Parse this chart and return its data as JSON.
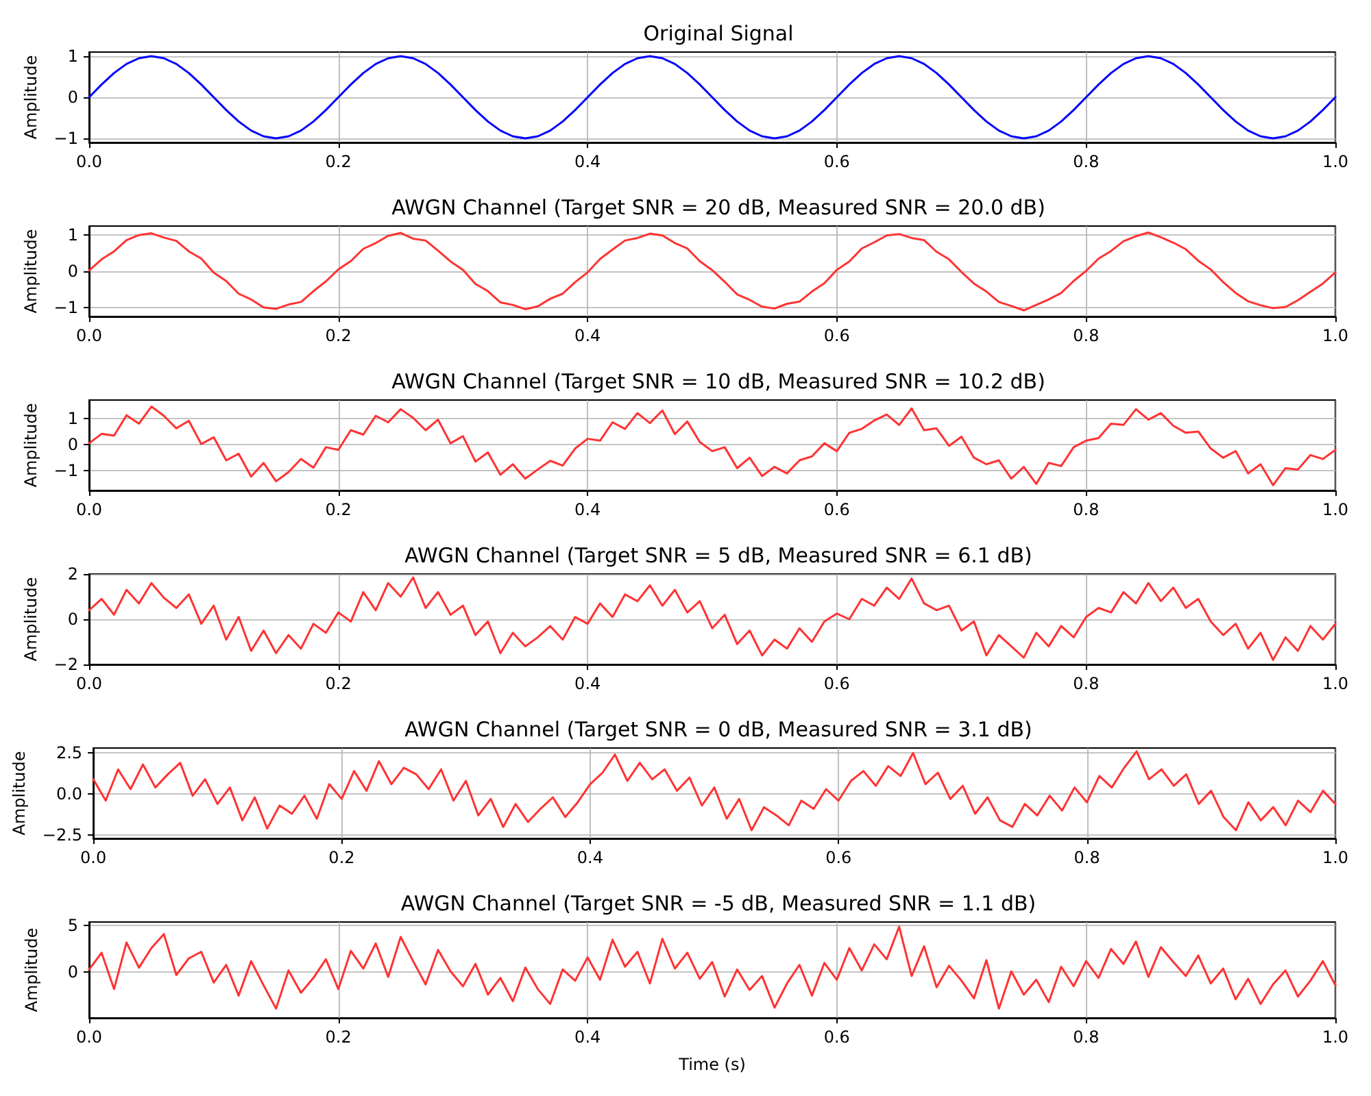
{
  "chart_data": [
    {
      "type": "line",
      "title": "Original Signal",
      "ylabel": "Amplitude",
      "color": "#0000ff",
      "grid": true,
      "marker": "none",
      "line_style": "solid",
      "xlim": [
        0,
        1
      ],
      "ylim": [
        -1.1,
        1.1
      ],
      "xticks": [
        {
          "value": 0,
          "label": "0.0"
        },
        {
          "value": 0.2,
          "label": "0.2"
        },
        {
          "value": 0.4,
          "label": "0.4"
        },
        {
          "value": 0.6,
          "label": "0.6"
        },
        {
          "value": 0.8,
          "label": "0.8"
        },
        {
          "value": 1,
          "label": "1.0"
        }
      ],
      "yticks": [
        {
          "value": -1,
          "label": "−1"
        },
        0,
        1
      ],
      "x": [
        0,
        0.01,
        0.02,
        0.03,
        0.04,
        0.05,
        0.06,
        0.07,
        0.08,
        0.09,
        0.1,
        0.11,
        0.12,
        0.13,
        0.14,
        0.15,
        0.16,
        0.17,
        0.18,
        0.19,
        0.2,
        0.21,
        0.22,
        0.23,
        0.24,
        0.25,
        0.26,
        0.27,
        0.28,
        0.29,
        0.3,
        0.31,
        0.32,
        0.33,
        0.34,
        0.35,
        0.36,
        0.37,
        0.38,
        0.39,
        0.4,
        0.41,
        0.42,
        0.43,
        0.44,
        0.45,
        0.46,
        0.47,
        0.48,
        0.49,
        0.5,
        0.51,
        0.52,
        0.53,
        0.54,
        0.55,
        0.56,
        0.57,
        0.58,
        0.59,
        0.6,
        0.61,
        0.62,
        0.63,
        0.64,
        0.65,
        0.66,
        0.67,
        0.68,
        0.69,
        0.7,
        0.71,
        0.72,
        0.73,
        0.74,
        0.75,
        0.76,
        0.77,
        0.78,
        0.79,
        0.8,
        0.81,
        0.82,
        0.83,
        0.84,
        0.85,
        0.86,
        0.87,
        0.88,
        0.89,
        0.9,
        0.91,
        0.92,
        0.93,
        0.94,
        0.95,
        0.96,
        0.97,
        0.98,
        0.99,
        1
      ],
      "values": [
        0,
        0.31,
        0.59,
        0.81,
        0.95,
        1,
        0.95,
        0.81,
        0.59,
        0.31,
        0,
        -0.31,
        -0.59,
        -0.81,
        -0.95,
        -1,
        -0.95,
        -0.81,
        -0.59,
        -0.31,
        0,
        0.31,
        0.59,
        0.81,
        0.95,
        1,
        0.95,
        0.81,
        0.59,
        0.31,
        0,
        -0.31,
        -0.59,
        -0.81,
        -0.95,
        -1,
        -0.95,
        -0.81,
        -0.59,
        -0.31,
        0,
        0.31,
        0.59,
        0.81,
        0.95,
        1,
        0.95,
        0.81,
        0.59,
        0.31,
        0,
        -0.31,
        -0.59,
        -0.81,
        -0.95,
        -1,
        -0.95,
        -0.81,
        -0.59,
        -0.31,
        0,
        0.31,
        0.59,
        0.81,
        0.95,
        1,
        0.95,
        0.81,
        0.59,
        0.31,
        0,
        -0.31,
        -0.59,
        -0.81,
        -0.95,
        -1,
        -0.95,
        -0.81,
        -0.59,
        -0.31,
        0,
        0.31,
        0.59,
        0.81,
        0.95,
        1,
        0.95,
        0.81,
        0.59,
        0.31,
        0,
        -0.31,
        -0.59,
        -0.81,
        -0.95,
        -1,
        -0.95,
        -0.81,
        -0.59,
        -0.31,
        0
      ]
    },
    {
      "type": "line",
      "title": "AWGN Channel (Target SNR = 20 dB, Measured SNR = 20.0 dB)",
      "ylabel": "Amplitude",
      "color": "#ff3333",
      "grid": true,
      "marker": "none",
      "line_style": "solid",
      "xlim": [
        0,
        1
      ],
      "ylim": [
        -1.25,
        1.25
      ],
      "xticks": [
        {
          "value": 0,
          "label": "0.0"
        },
        {
          "value": 0.2,
          "label": "0.2"
        },
        {
          "value": 0.4,
          "label": "0.4"
        },
        {
          "value": 0.6,
          "label": "0.6"
        },
        {
          "value": 0.8,
          "label": "0.8"
        },
        {
          "value": 1,
          "label": "1.0"
        }
      ],
      "yticks": [
        {
          "value": -1,
          "label": "−1"
        },
        0,
        1
      ],
      "x": [
        0,
        0.01,
        0.02,
        0.03,
        0.04,
        0.05,
        0.06,
        0.07,
        0.08,
        0.09,
        0.1,
        0.11,
        0.12,
        0.13,
        0.14,
        0.15,
        0.16,
        0.17,
        0.18,
        0.19,
        0.2,
        0.21,
        0.22,
        0.23,
        0.24,
        0.25,
        0.26,
        0.27,
        0.28,
        0.29,
        0.3,
        0.31,
        0.32,
        0.33,
        0.34,
        0.35,
        0.36,
        0.37,
        0.38,
        0.39,
        0.4,
        0.41,
        0.42,
        0.43,
        0.44,
        0.45,
        0.46,
        0.47,
        0.48,
        0.49,
        0.5,
        0.51,
        0.52,
        0.53,
        0.54,
        0.55,
        0.56,
        0.57,
        0.58,
        0.59,
        0.6,
        0.61,
        0.62,
        0.63,
        0.64,
        0.65,
        0.66,
        0.67,
        0.68,
        0.69,
        0.7,
        0.71,
        0.72,
        0.73,
        0.74,
        0.75,
        0.76,
        0.77,
        0.78,
        0.79,
        0.8,
        0.81,
        0.82,
        0.83,
        0.84,
        0.85,
        0.86,
        0.87,
        0.88,
        0.89,
        0.9,
        0.91,
        0.92,
        0.93,
        0.94,
        0.95,
        0.96,
        0.97,
        0.98,
        0.99,
        1
      ],
      "values": [
        0.02,
        0.33,
        0.55,
        0.86,
        1.0,
        1.05,
        0.93,
        0.84,
        0.55,
        0.35,
        -0.04,
        -0.27,
        -0.62,
        -0.78,
        -1.0,
        -1.04,
        -0.92,
        -0.85,
        -0.55,
        -0.28,
        0.05,
        0.28,
        0.62,
        0.78,
        0.98,
        1.06,
        0.9,
        0.85,
        0.57,
        0.27,
        0.04,
        -0.35,
        -0.55,
        -0.86,
        -0.93,
        -1.05,
        -0.97,
        -0.76,
        -0.62,
        -0.3,
        -0.03,
        0.34,
        0.6,
        0.85,
        0.92,
        1.04,
        0.99,
        0.78,
        0.63,
        0.28,
        0.03,
        -0.29,
        -0.64,
        -0.79,
        -0.98,
        -1.03,
        -0.9,
        -0.84,
        -0.56,
        -0.33,
        0.04,
        0.27,
        0.63,
        0.8,
        0.99,
        1.03,
        0.92,
        0.86,
        0.54,
        0.33,
        -0.02,
        -0.34,
        -0.56,
        -0.85,
        -0.96,
        -1.08,
        -0.93,
        -0.78,
        -0.6,
        -0.27,
        0.01,
        0.35,
        0.56,
        0.83,
        0.97,
        1.07,
        0.94,
        0.79,
        0.61,
        0.29,
        0.05,
        -0.3,
        -0.6,
        -0.83,
        -0.94,
        -1.02,
        -0.99,
        -0.8,
        -0.57,
        -0.34,
        -0.03
      ]
    },
    {
      "type": "line",
      "title": "AWGN Channel (Target SNR = 10 dB, Measured SNR = 10.2 dB)",
      "ylabel": "Amplitude",
      "color": "#ff3333",
      "grid": true,
      "marker": "none",
      "line_style": "solid",
      "xlim": [
        0,
        1
      ],
      "ylim": [
        -1.75,
        1.7
      ],
      "xticks": [
        {
          "value": 0,
          "label": "0.0"
        },
        {
          "value": 0.2,
          "label": "0.2"
        },
        {
          "value": 0.4,
          "label": "0.4"
        },
        {
          "value": 0.6,
          "label": "0.6"
        },
        {
          "value": 0.8,
          "label": "0.8"
        },
        {
          "value": 1,
          "label": "1.0"
        }
      ],
      "yticks": [
        {
          "value": -1,
          "label": "−1"
        },
        0,
        1
      ],
      "x": [
        0,
        0.01,
        0.02,
        0.03,
        0.04,
        0.05,
        0.06,
        0.07,
        0.08,
        0.09,
        0.1,
        0.11,
        0.12,
        0.13,
        0.14,
        0.15,
        0.16,
        0.17,
        0.18,
        0.19,
        0.2,
        0.21,
        0.22,
        0.23,
        0.24,
        0.25,
        0.26,
        0.27,
        0.28,
        0.29,
        0.3,
        0.31,
        0.32,
        0.33,
        0.34,
        0.35,
        0.36,
        0.37,
        0.38,
        0.39,
        0.4,
        0.41,
        0.42,
        0.43,
        0.44,
        0.45,
        0.46,
        0.47,
        0.48,
        0.49,
        0.5,
        0.51,
        0.52,
        0.53,
        0.54,
        0.55,
        0.56,
        0.57,
        0.58,
        0.59,
        0.6,
        0.61,
        0.62,
        0.63,
        0.64,
        0.65,
        0.66,
        0.67,
        0.68,
        0.69,
        0.7,
        0.71,
        0.72,
        0.73,
        0.74,
        0.75,
        0.76,
        0.77,
        0.78,
        0.79,
        0.8,
        0.81,
        0.82,
        0.83,
        0.84,
        0.85,
        0.86,
        0.87,
        0.88,
        0.89,
        0.9,
        0.91,
        0.92,
        0.93,
        0.94,
        0.95,
        0.96,
        0.97,
        0.98,
        0.99,
        1
      ],
      "values": [
        0.05,
        0.41,
        0.34,
        1.12,
        0.8,
        1.45,
        1.1,
        0.62,
        0.91,
        0.02,
        0.28,
        -0.6,
        -0.35,
        -1.22,
        -0.7,
        -1.4,
        -1.05,
        -0.55,
        -0.88,
        -0.1,
        -0.2,
        0.55,
        0.38,
        1.1,
        0.85,
        1.35,
        1.02,
        0.55,
        0.95,
        0.05,
        0.32,
        -0.65,
        -0.3,
        -1.15,
        -0.75,
        -1.3,
        -0.95,
        -0.62,
        -0.8,
        -0.15,
        0.22,
        0.15,
        0.85,
        0.6,
        1.2,
        0.82,
        1.3,
        0.4,
        0.88,
        0.1,
        -0.25,
        -0.1,
        -0.9,
        -0.5,
        -1.2,
        -0.85,
        -1.1,
        -0.6,
        -0.45,
        0.05,
        -0.25,
        0.45,
        0.6,
        0.92,
        1.15,
        0.75,
        1.38,
        0.55,
        0.62,
        -0.05,
        0.3,
        -0.5,
        -0.75,
        -0.6,
        -1.3,
        -0.85,
        -1.5,
        -0.7,
        -0.82,
        -0.1,
        0.15,
        0.25,
        0.8,
        0.75,
        1.35,
        0.95,
        1.2,
        0.72,
        0.45,
        0.5,
        -0.15,
        -0.5,
        -0.25,
        -1.1,
        -0.75,
        -1.55,
        -0.9,
        -0.95,
        -0.4,
        -0.55,
        -0.2
      ]
    },
    {
      "type": "line",
      "title": "AWGN Channel (Target SNR = 5 dB, Measured SNR = 6.1 dB)",
      "ylabel": "Amplitude",
      "color": "#ff3333",
      "grid": true,
      "marker": "none",
      "line_style": "solid",
      "xlim": [
        0,
        1
      ],
      "ylim": [
        -2,
        2
      ],
      "xticks": [
        {
          "value": 0,
          "label": "0.0"
        },
        {
          "value": 0.2,
          "label": "0.2"
        },
        {
          "value": 0.4,
          "label": "0.4"
        },
        {
          "value": 0.6,
          "label": "0.6"
        },
        {
          "value": 0.8,
          "label": "0.8"
        },
        {
          "value": 1,
          "label": "1.0"
        }
      ],
      "yticks": [
        {
          "value": -2,
          "label": "−2"
        },
        0,
        2
      ],
      "x": [
        0,
        0.01,
        0.02,
        0.03,
        0.04,
        0.05,
        0.06,
        0.07,
        0.08,
        0.09,
        0.1,
        0.11,
        0.12,
        0.13,
        0.14,
        0.15,
        0.16,
        0.17,
        0.18,
        0.19,
        0.2,
        0.21,
        0.22,
        0.23,
        0.24,
        0.25,
        0.26,
        0.27,
        0.28,
        0.29,
        0.3,
        0.31,
        0.32,
        0.33,
        0.34,
        0.35,
        0.36,
        0.37,
        0.38,
        0.39,
        0.4,
        0.41,
        0.42,
        0.43,
        0.44,
        0.45,
        0.46,
        0.47,
        0.48,
        0.49,
        0.5,
        0.51,
        0.52,
        0.53,
        0.54,
        0.55,
        0.56,
        0.57,
        0.58,
        0.59,
        0.6,
        0.61,
        0.62,
        0.63,
        0.64,
        0.65,
        0.66,
        0.67,
        0.68,
        0.69,
        0.7,
        0.71,
        0.72,
        0.73,
        0.74,
        0.75,
        0.76,
        0.77,
        0.78,
        0.79,
        0.8,
        0.81,
        0.82,
        0.83,
        0.84,
        0.85,
        0.86,
        0.87,
        0.88,
        0.89,
        0.9,
        0.91,
        0.92,
        0.93,
        0.94,
        0.95,
        0.96,
        0.97,
        0.98,
        0.99,
        1
      ],
      "values": [
        0.4,
        0.9,
        0.2,
        1.3,
        0.7,
        1.6,
        0.95,
        0.5,
        1.1,
        -0.2,
        0.6,
        -0.9,
        0.1,
        -1.4,
        -0.5,
        -1.5,
        -0.7,
        -1.3,
        -0.2,
        -0.6,
        0.3,
        -0.1,
        1.2,
        0.4,
        1.6,
        1.0,
        1.85,
        0.5,
        1.2,
        0.2,
        0.6,
        -0.7,
        -0.1,
        -1.5,
        -0.6,
        -1.2,
        -0.8,
        -0.3,
        -0.9,
        0.1,
        -0.2,
        0.7,
        0.1,
        1.1,
        0.8,
        1.5,
        0.6,
        1.3,
        0.3,
        0.8,
        -0.4,
        0.2,
        -1.1,
        -0.5,
        -1.6,
        -0.9,
        -1.3,
        -0.4,
        -1.0,
        -0.1,
        0.25,
        0.0,
        0.9,
        0.6,
        1.4,
        0.9,
        1.8,
        0.7,
        0.4,
        0.6,
        -0.5,
        -0.1,
        -1.6,
        -0.7,
        -1.2,
        -1.7,
        -0.6,
        -1.2,
        -0.3,
        -0.8,
        0.1,
        0.5,
        0.3,
        1.2,
        0.7,
        1.6,
        0.8,
        1.4,
        0.5,
        0.9,
        -0.1,
        -0.7,
        -0.2,
        -1.3,
        -0.6,
        -1.8,
        -0.8,
        -1.4,
        -0.3,
        -0.9,
        -0.2
      ]
    },
    {
      "type": "line",
      "title": "AWGN Channel (Target SNR = 0 dB, Measured SNR = 3.1 dB)",
      "ylabel": "Amplitude",
      "color": "#ff3333",
      "grid": true,
      "marker": "none",
      "line_style": "solid",
      "xlim": [
        0,
        1
      ],
      "ylim": [
        -2.7,
        2.8
      ],
      "xticks": [
        {
          "value": 0,
          "label": "0.0"
        },
        {
          "value": 0.2,
          "label": "0.2"
        },
        {
          "value": 0.4,
          "label": "0.4"
        },
        {
          "value": 0.6,
          "label": "0.6"
        },
        {
          "value": 0.8,
          "label": "0.8"
        },
        {
          "value": 1,
          "label": "1.0"
        }
      ],
      "yticks": [
        {
          "value": -2.5,
          "label": "−2.5"
        },
        {
          "value": 0,
          "label": "0.0"
        },
        2.5
      ],
      "x": [
        0,
        0.01,
        0.02,
        0.03,
        0.04,
        0.05,
        0.06,
        0.07,
        0.08,
        0.09,
        0.1,
        0.11,
        0.12,
        0.13,
        0.14,
        0.15,
        0.16,
        0.17,
        0.18,
        0.19,
        0.2,
        0.21,
        0.22,
        0.23,
        0.24,
        0.25,
        0.26,
        0.27,
        0.28,
        0.29,
        0.3,
        0.31,
        0.32,
        0.33,
        0.34,
        0.35,
        0.36,
        0.37,
        0.38,
        0.39,
        0.4,
        0.41,
        0.42,
        0.43,
        0.44,
        0.45,
        0.46,
        0.47,
        0.48,
        0.49,
        0.5,
        0.51,
        0.52,
        0.53,
        0.54,
        0.55,
        0.56,
        0.57,
        0.58,
        0.59,
        0.6,
        0.61,
        0.62,
        0.63,
        0.64,
        0.65,
        0.66,
        0.67,
        0.68,
        0.69,
        0.7,
        0.71,
        0.72,
        0.73,
        0.74,
        0.75,
        0.76,
        0.77,
        0.78,
        0.79,
        0.8,
        0.81,
        0.82,
        0.83,
        0.84,
        0.85,
        0.86,
        0.87,
        0.88,
        0.89,
        0.9,
        0.91,
        0.92,
        0.93,
        0.94,
        0.95,
        0.96,
        0.97,
        0.98,
        0.99,
        1
      ],
      "values": [
        0.9,
        -0.4,
        1.5,
        0.3,
        1.8,
        0.4,
        1.2,
        1.9,
        -0.1,
        0.9,
        -0.6,
        0.4,
        -1.6,
        -0.2,
        -2.1,
        -0.7,
        -1.2,
        -0.1,
        -1.5,
        0.6,
        -0.3,
        1.4,
        0.2,
        2.0,
        0.6,
        1.6,
        1.2,
        0.3,
        1.5,
        -0.4,
        0.8,
        -1.3,
        -0.3,
        -2.0,
        -0.6,
        -1.7,
        -0.9,
        -0.2,
        -1.4,
        -0.5,
        0.6,
        1.3,
        2.4,
        0.8,
        1.9,
        0.9,
        1.5,
        0.2,
        1.0,
        -0.7,
        0.4,
        -1.5,
        -0.3,
        -2.2,
        -0.8,
        -1.3,
        -1.9,
        -0.4,
        -0.9,
        0.3,
        -0.4,
        0.8,
        1.4,
        0.5,
        1.7,
        1.1,
        2.5,
        0.6,
        1.3,
        -0.3,
        0.5,
        -1.2,
        -0.2,
        -1.6,
        -2.0,
        -0.6,
        -1.3,
        -0.1,
        -1.0,
        0.4,
        -0.5,
        1.1,
        0.4,
        1.6,
        2.6,
        0.9,
        1.5,
        0.5,
        1.2,
        -0.6,
        0.2,
        -1.4,
        -2.2,
        -0.5,
        -1.6,
        -0.8,
        -1.9,
        -0.4,
        -1.1,
        0.2,
        -0.6
      ]
    },
    {
      "type": "line",
      "title": "AWGN Channel (Target SNR = -5 dB, Measured SNR = 1.1 dB)",
      "xlabel": "Time (s)",
      "ylabel": "Amplitude",
      "color": "#ff3333",
      "grid": true,
      "marker": "none",
      "line_style": "solid",
      "xlim": [
        0,
        1
      ],
      "ylim": [
        -4.9,
        5.4
      ],
      "xticks": [
        {
          "value": 0,
          "label": "0.0"
        },
        {
          "value": 0.2,
          "label": "0.2"
        },
        {
          "value": 0.4,
          "label": "0.4"
        },
        {
          "value": 0.6,
          "label": "0.6"
        },
        {
          "value": 0.8,
          "label": "0.8"
        },
        {
          "value": 1,
          "label": "1.0"
        }
      ],
      "yticks": [
        0,
        5
      ],
      "x": [
        0,
        0.01,
        0.02,
        0.03,
        0.04,
        0.05,
        0.06,
        0.07,
        0.08,
        0.09,
        0.1,
        0.11,
        0.12,
        0.13,
        0.14,
        0.15,
        0.16,
        0.17,
        0.18,
        0.19,
        0.2,
        0.21,
        0.22,
        0.23,
        0.24,
        0.25,
        0.26,
        0.27,
        0.28,
        0.29,
        0.3,
        0.31,
        0.32,
        0.33,
        0.34,
        0.35,
        0.36,
        0.37,
        0.38,
        0.39,
        0.4,
        0.41,
        0.42,
        0.43,
        0.44,
        0.45,
        0.46,
        0.47,
        0.48,
        0.49,
        0.5,
        0.51,
        0.52,
        0.53,
        0.54,
        0.55,
        0.56,
        0.57,
        0.58,
        0.59,
        0.6,
        0.61,
        0.62,
        0.63,
        0.64,
        0.65,
        0.66,
        0.67,
        0.68,
        0.69,
        0.7,
        0.71,
        0.72,
        0.73,
        0.74,
        0.75,
        0.76,
        0.77,
        0.78,
        0.79,
        0.8,
        0.81,
        0.82,
        0.83,
        0.84,
        0.85,
        0.86,
        0.87,
        0.88,
        0.89,
        0.9,
        0.91,
        0.92,
        0.93,
        0.94,
        0.95,
        0.96,
        0.97,
        0.98,
        0.99,
        1
      ],
      "values": [
        0.3,
        2.1,
        -1.8,
        3.2,
        0.5,
        2.6,
        4.1,
        -0.3,
        1.5,
        2.2,
        -1.1,
        0.8,
        -2.5,
        1.2,
        -1.4,
        -3.9,
        0.2,
        -2.2,
        -0.6,
        1.4,
        -1.8,
        2.3,
        0.4,
        3.1,
        -0.5,
        3.8,
        1.2,
        -1.3,
        2.4,
        0.1,
        -1.5,
        0.9,
        -2.4,
        -0.6,
        -3.1,
        0.5,
        -1.8,
        -3.4,
        0.3,
        -0.9,
        1.6,
        -0.8,
        3.5,
        0.6,
        2.2,
        -1.2,
        3.6,
        0.4,
        2.1,
        -0.7,
        1.1,
        -2.6,
        0.3,
        -1.9,
        -0.4,
        -3.8,
        -1.2,
        0.8,
        -2.5,
        1.0,
        -0.8,
        2.6,
        0.2,
        3.0,
        1.4,
        4.9,
        -0.4,
        2.8,
        -1.6,
        0.7,
        -0.9,
        -2.8,
        1.3,
        -3.9,
        0.1,
        -2.4,
        -0.8,
        -3.2,
        0.6,
        -1.5,
        1.2,
        -0.6,
        2.5,
        0.9,
        3.3,
        -0.5,
        2.7,
        1.1,
        -0.4,
        1.8,
        -1.2,
        0.4,
        -2.9,
        -0.7,
        -3.4,
        -1.3,
        0.2,
        -2.6,
        -0.9,
        1.2,
        -1.4
      ]
    }
  ]
}
